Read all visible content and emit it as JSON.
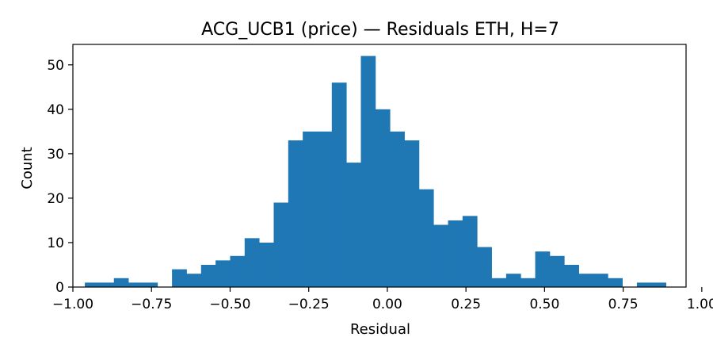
{
  "chart_data": {
    "type": "bar",
    "title": "ACG_UCB1 (price) — Residuals ETH, H=7",
    "xlabel": "Residual",
    "ylabel": "Count",
    "xlim": [
      -1.0,
      0.95
    ],
    "ylim": [
      0,
      54.6
    ],
    "x_ticks": [
      -1.0,
      -0.75,
      -0.5,
      -0.25,
      0.0,
      0.25,
      0.5,
      0.75,
      1.0
    ],
    "x_tick_labels": [
      "−1.00",
      "−0.75",
      "−0.50",
      "−0.25",
      "0.00",
      "0.25",
      "0.50",
      "0.75",
      "1.00"
    ],
    "y_ticks": [
      0,
      10,
      20,
      30,
      40,
      50
    ],
    "y_tick_labels": [
      "0",
      "10",
      "20",
      "30",
      "40",
      "50"
    ],
    "bar_color": "#1f77b4",
    "bin_start": -0.962,
    "bin_width": 0.0462,
    "counts": [
      1,
      1,
      2,
      1,
      1,
      0,
      4,
      3,
      5,
      6,
      7,
      11,
      10,
      19,
      33,
      35,
      35,
      46,
      28,
      52,
      40,
      35,
      33,
      22,
      14,
      15,
      16,
      9,
      2,
      3,
      2,
      8,
      7,
      5,
      3,
      3,
      2,
      0,
      1,
      1
    ],
    "grid": false,
    "legend": "none"
  }
}
